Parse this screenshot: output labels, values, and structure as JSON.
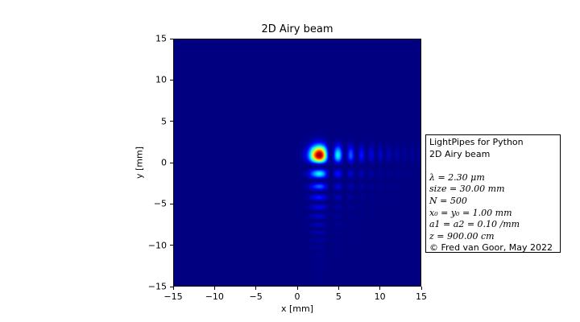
{
  "chart_data": {
    "type": "heatmap",
    "title": "2D Airy beam",
    "xlabel": "x [mm]",
    "ylabel": "y [mm]",
    "xlim": [
      -15,
      15
    ],
    "ylim": [
      -15,
      15
    ],
    "xticks": [
      "−15",
      "−10",
      "−5",
      "0",
      "5",
      "10",
      "15"
    ],
    "yticks": [
      "15",
      "10",
      "5",
      "0",
      "−5",
      "−10",
      "−15"
    ],
    "xtick_values": [
      -15,
      -10,
      -5,
      0,
      5,
      10,
      15
    ],
    "ytick_values": [
      15,
      10,
      5,
      0,
      -5,
      -10,
      -15
    ],
    "colormap": "jet",
    "beam": {
      "x0": 1.0,
      "y0": 1.0,
      "a": 0.1,
      "main_lobe_x": 1.8,
      "main_lobe_y": 1.8
    }
  },
  "infobox": {
    "line1": "LightPipes for Python",
    "line2": "2D Airy beam",
    "wavelength": "λ = 2.30 μm",
    "size": "size = 30.00 mm",
    "grid": "N = 500",
    "origin": "x₀ = y₀ = 1.00 mm",
    "decay": "a1 = a2 = 0.10 /mm",
    "distance": "z = 900.00 cm",
    "credit": "© Fred van Goor, May 2022"
  }
}
